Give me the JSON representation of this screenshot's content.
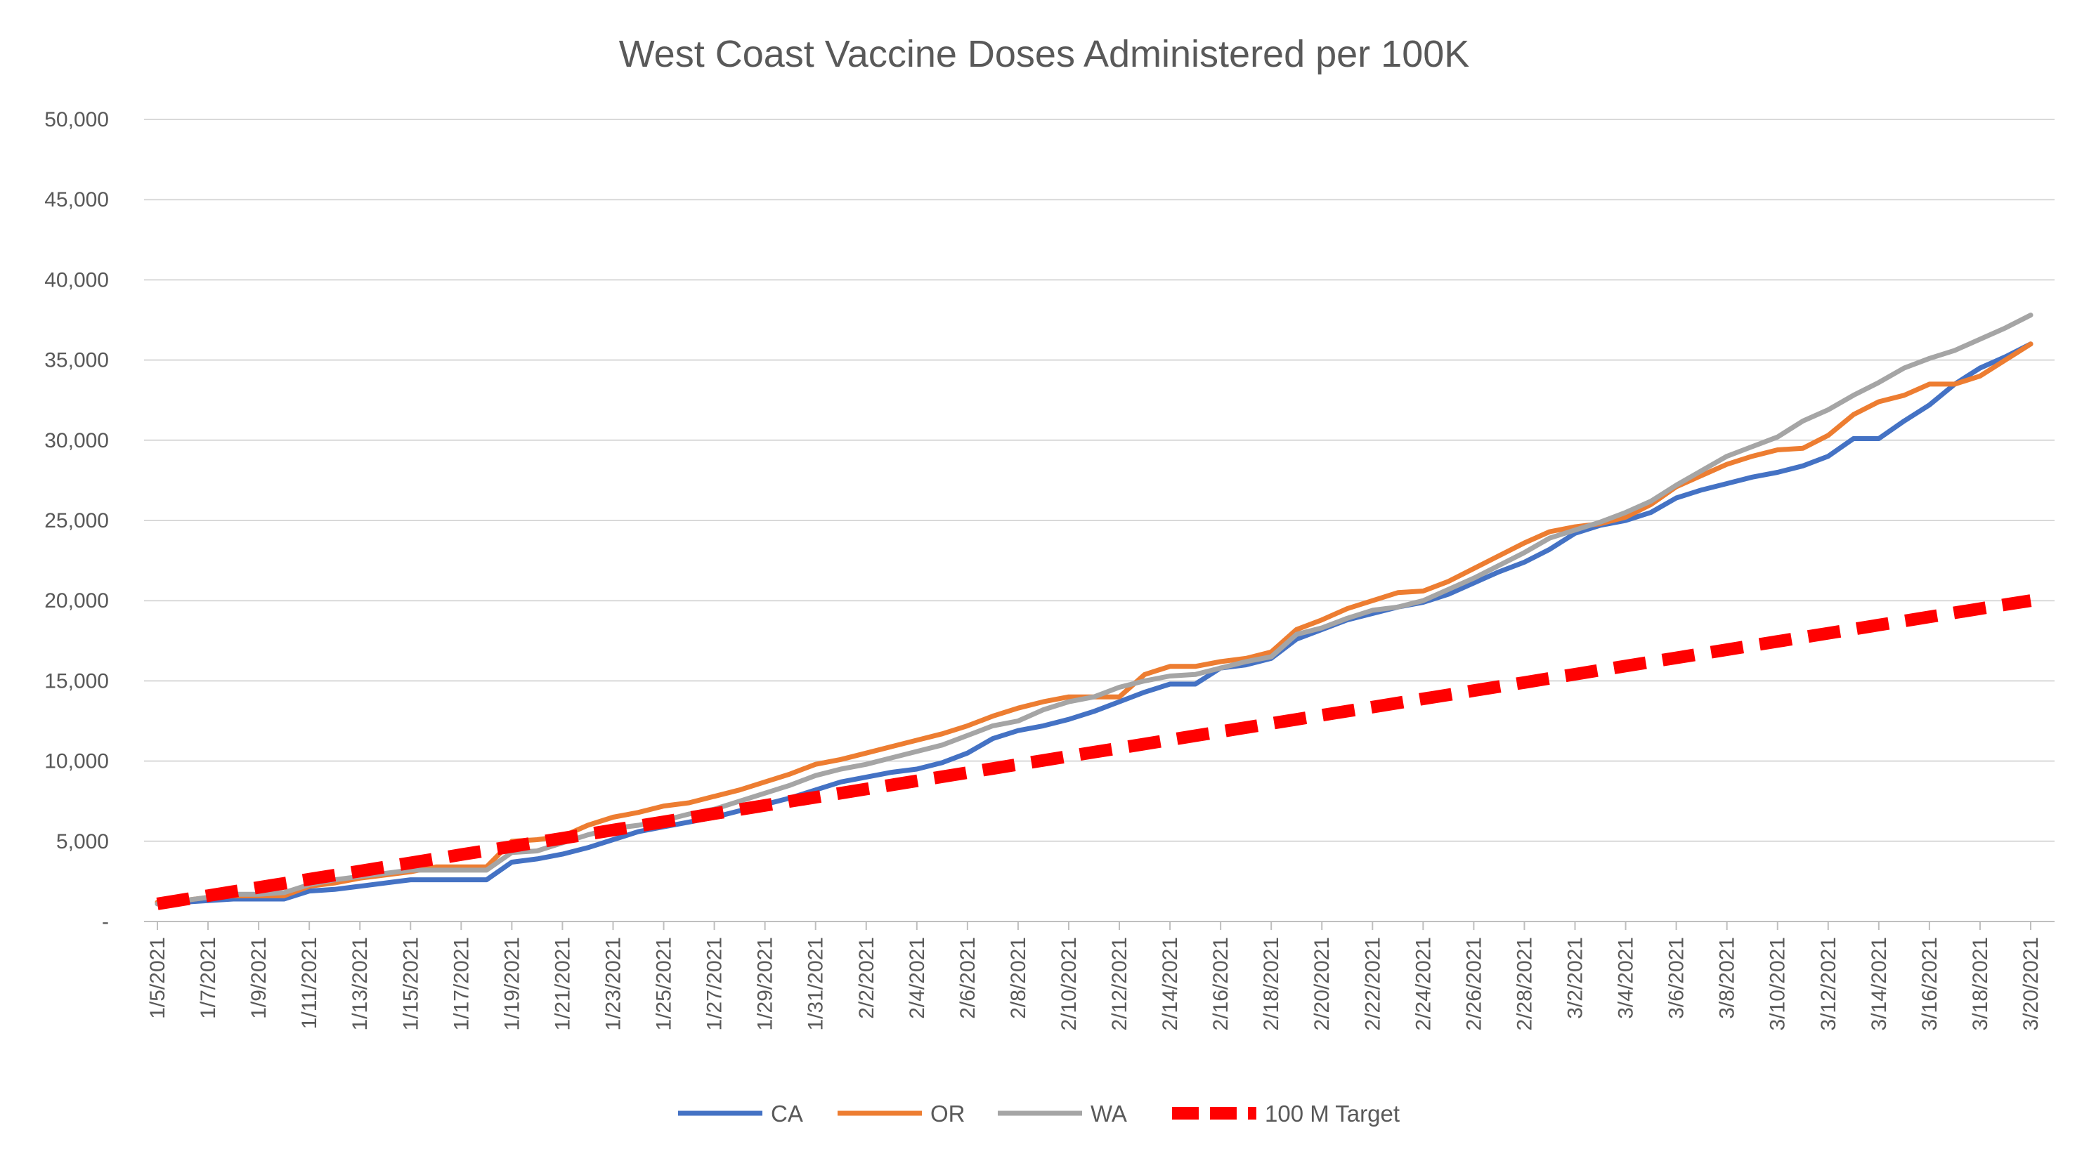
{
  "chart_data": {
    "type": "line",
    "title": "West Coast Vaccine Doses Administered per 100K",
    "xlabel": "",
    "ylabel": "",
    "ylim": [
      0,
      50000
    ],
    "y_ticks": [
      0,
      5000,
      10000,
      15000,
      20000,
      25000,
      30000,
      35000,
      40000,
      45000,
      50000
    ],
    "y_tick_labels": [
      "-",
      "5,000",
      "10,000",
      "15,000",
      "20,000",
      "25,000",
      "30,000",
      "35,000",
      "40,000",
      "45,000",
      "50,000"
    ],
    "grid": true,
    "legend_position": "bottom",
    "x": [
      "1/5/2021",
      "1/6/2021",
      "1/7/2021",
      "1/8/2021",
      "1/9/2021",
      "1/10/2021",
      "1/11/2021",
      "1/12/2021",
      "1/13/2021",
      "1/14/2021",
      "1/15/2021",
      "1/16/2021",
      "1/17/2021",
      "1/18/2021",
      "1/19/2021",
      "1/20/2021",
      "1/21/2021",
      "1/22/2021",
      "1/23/2021",
      "1/24/2021",
      "1/25/2021",
      "1/26/2021",
      "1/27/2021",
      "1/28/2021",
      "1/29/2021",
      "1/30/2021",
      "1/31/2021",
      "2/1/2021",
      "2/2/2021",
      "2/3/2021",
      "2/4/2021",
      "2/5/2021",
      "2/6/2021",
      "2/7/2021",
      "2/8/2021",
      "2/9/2021",
      "2/10/2021",
      "2/11/2021",
      "2/12/2021",
      "2/13/2021",
      "2/14/2021",
      "2/15/2021",
      "2/16/2021",
      "2/17/2021",
      "2/18/2021",
      "2/19/2021",
      "2/20/2021",
      "2/21/2021",
      "2/22/2021",
      "2/23/2021",
      "2/24/2021",
      "2/25/2021",
      "2/26/2021",
      "2/27/2021",
      "2/28/2021",
      "3/1/2021",
      "3/2/2021",
      "3/3/2021",
      "3/4/2021",
      "3/5/2021",
      "3/6/2021",
      "3/7/2021",
      "3/8/2021",
      "3/9/2021",
      "3/10/2021",
      "3/11/2021",
      "3/12/2021",
      "3/13/2021",
      "3/14/2021",
      "3/15/2021",
      "3/16/2021",
      "3/17/2021",
      "3/18/2021",
      "3/19/2021",
      "3/20/2021"
    ],
    "x_tick_labels": [
      "1/5/2021",
      "1/7/2021",
      "1/9/2021",
      "1/11/2021",
      "1/13/2021",
      "1/15/2021",
      "1/17/2021",
      "1/19/2021",
      "1/21/2021",
      "1/23/2021",
      "1/25/2021",
      "1/27/2021",
      "1/29/2021",
      "1/31/2021",
      "2/2/2021",
      "2/4/2021",
      "2/6/2021",
      "2/8/2021",
      "2/10/2021",
      "2/12/2021",
      "2/14/2021",
      "2/16/2021",
      "2/18/2021",
      "2/20/2021",
      "2/22/2021",
      "2/24/2021",
      "2/26/2021",
      "2/28/2021",
      "3/2/2021",
      "3/4/2021",
      "3/6/2021",
      "3/8/2021",
      "3/10/2021",
      "3/12/2021",
      "3/14/2021",
      "3/16/2021",
      "3/18/2021",
      "3/20/2021"
    ],
    "series": [
      {
        "name": "CA",
        "color": "#4472C4",
        "dashed": false,
        "values": [
          1100,
          1200,
          1300,
          1400,
          1400,
          1400,
          1900,
          2000,
          2200,
          2400,
          2600,
          2600,
          2600,
          2600,
          3700,
          3900,
          4200,
          4600,
          5100,
          5600,
          5900,
          6200,
          6500,
          6900,
          7300,
          7700,
          8200,
          8700,
          9000,
          9300,
          9500,
          9900,
          10500,
          11400,
          11900,
          12200,
          12600,
          13100,
          13700,
          14300,
          14800,
          14800,
          15800,
          16000,
          16400,
          17600,
          18200,
          18800,
          19200,
          19600,
          19900,
          20400,
          21100,
          21800,
          22400,
          23200,
          24200,
          24700,
          25000,
          25500,
          26400,
          26900,
          27300,
          27700,
          28000,
          28400,
          29000,
          30100,
          30100,
          31200,
          32200,
          33500,
          34500,
          35200,
          36000
        ]
      },
      {
        "name": "OR",
        "color": "#ED7D31",
        "dashed": false,
        "values": [
          1200,
          1300,
          1500,
          1600,
          1600,
          1600,
          2200,
          2400,
          2700,
          2900,
          3100,
          3400,
          3400,
          3400,
          5000,
          5100,
          5300,
          6000,
          6500,
          6800,
          7200,
          7400,
          7800,
          8200,
          8700,
          9200,
          9800,
          10100,
          10500,
          10900,
          11300,
          11700,
          12200,
          12800,
          13300,
          13700,
          14000,
          14000,
          14000,
          15400,
          15900,
          15900,
          16200,
          16400,
          16800,
          18200,
          18800,
          19500,
          20000,
          20500,
          20600,
          21200,
          22000,
          22800,
          23600,
          24300,
          24600,
          24800,
          25200,
          26000,
          27100,
          27800,
          28500,
          29000,
          29400,
          29500,
          30300,
          31600,
          32400,
          32800,
          33500,
          33500,
          34000,
          35000,
          36000
        ]
      },
      {
        "name": "WA",
        "color": "#A5A5A5",
        "dashed": false,
        "values": [
          1100,
          1300,
          1500,
          1700,
          1700,
          1800,
          2300,
          2600,
          2800,
          3000,
          3200,
          3200,
          3200,
          3200,
          4300,
          4400,
          4900,
          5400,
          5800,
          6000,
          6300,
          6700,
          7000,
          7500,
          8000,
          8500,
          9100,
          9500,
          9800,
          10200,
          10600,
          11000,
          11600,
          12200,
          12500,
          13200,
          13700,
          14000,
          14600,
          15000,
          15300,
          15400,
          15800,
          16200,
          16500,
          17900,
          18300,
          18900,
          19400,
          19600,
          20000,
          20700,
          21400,
          22200,
          23000,
          23900,
          24400,
          24900,
          25500,
          26200,
          27200,
          28100,
          29000,
          29600,
          30200,
          31200,
          31900,
          32800,
          33600,
          34500,
          35100,
          35600,
          36300,
          37000,
          37800
        ]
      },
      {
        "name": "100 M Target",
        "color": "#FF0000",
        "dashed": true,
        "values": [
          1100,
          1356,
          1611,
          1867,
          2122,
          2378,
          2634,
          2889,
          3145,
          3400,
          3656,
          3911,
          4167,
          4423,
          4678,
          4934,
          5189,
          5445,
          5701,
          5956,
          6212,
          6467,
          6723,
          6978,
          7234,
          7490,
          7745,
          8001,
          8256,
          8512,
          8767,
          9023,
          9279,
          9534,
          9790,
          10045,
          10301,
          10556,
          10812,
          11068,
          11323,
          11579,
          11834,
          12090,
          12345,
          12601,
          12857,
          13112,
          13368,
          13623,
          13879,
          14135,
          14390,
          14646,
          14901,
          15157,
          15412,
          15668,
          15924,
          16179,
          16435,
          16690,
          16946,
          17201,
          17457,
          17713,
          17968,
          18224,
          18479,
          18735,
          18990,
          19246,
          19502,
          19757,
          20000
        ]
      }
    ]
  }
}
